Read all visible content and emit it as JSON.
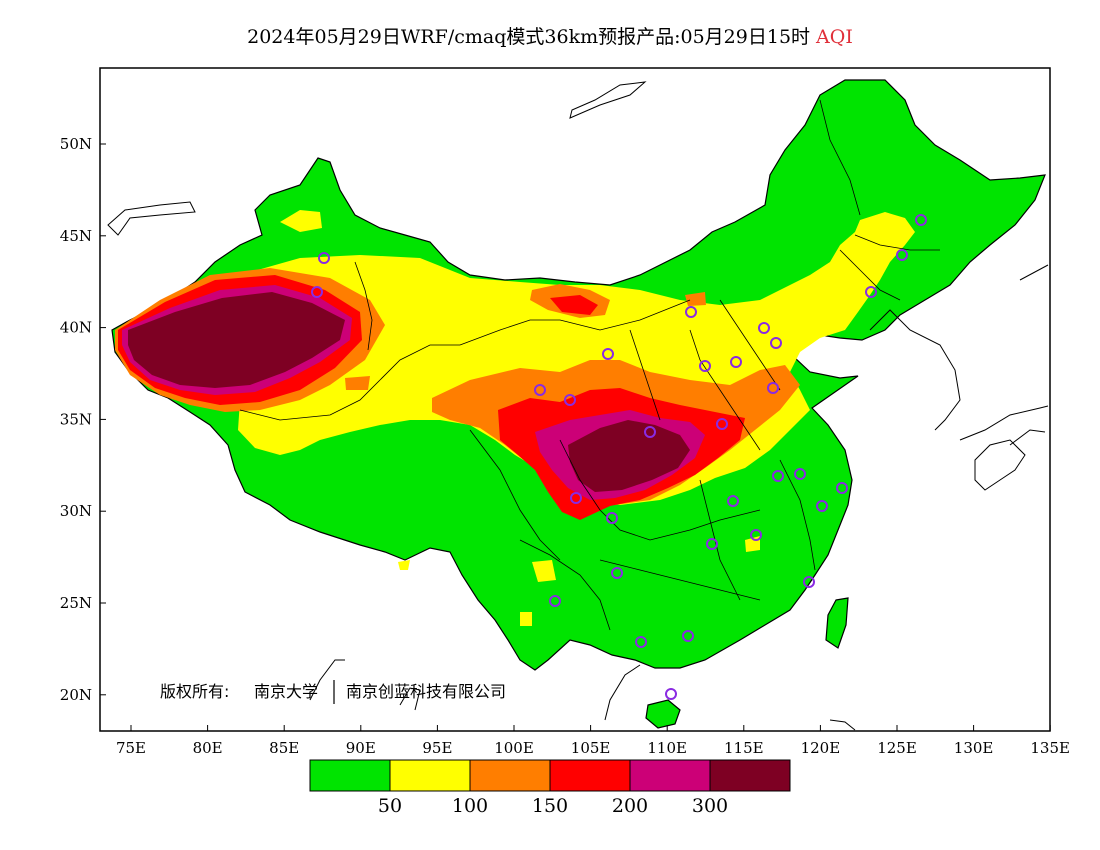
{
  "title": {
    "main": "2024年05月29日WRF/cmaq模式36km预报产品:05月29日15时",
    "variable": "AQI"
  },
  "copyright": {
    "owner_label": "版权所有:",
    "owner_1": "南京大学",
    "owner_2": "南京创蓝科技有限公司"
  },
  "axes": {
    "lat_ticks": [
      "50N",
      "45N",
      "40N",
      "35N",
      "30N",
      "25N",
      "20N"
    ],
    "lon_ticks": [
      "75E",
      "80E",
      "85E",
      "90E",
      "95E",
      "100E",
      "105E",
      "110E",
      "115E",
      "120E",
      "125E",
      "130E",
      "135E"
    ]
  },
  "colorbar": {
    "colors": [
      "#00e400",
      "#ffff00",
      "#ff7e00",
      "#ff0000",
      "#cc0077",
      "#7e0023"
    ],
    "labels": [
      "50",
      "100",
      "150",
      "200",
      "300"
    ]
  },
  "map": {
    "land_background": "#00e400",
    "ocean": "#ffffff",
    "outline": "#000000",
    "station_marker_color": "#8a2be2"
  }
}
